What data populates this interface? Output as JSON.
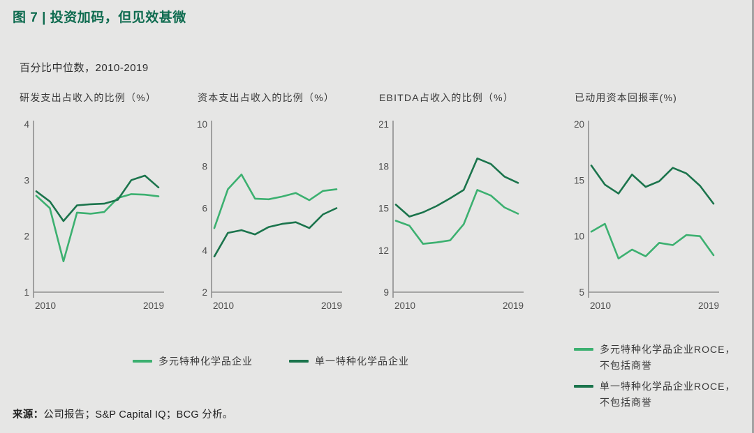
{
  "title": "图 7 | 投资加码，但见效甚微",
  "subtitle": "百分比中位数，2010-2019",
  "colors": {
    "diversified": "#3cb070",
    "focused": "#1b744c",
    "axis": "#8f8f8f",
    "title_green": "#0e6b4f",
    "background": "#e6e6e5"
  },
  "legend_main": {
    "items": [
      {
        "label": "多元特种化学品企业",
        "color_key": "diversified"
      },
      {
        "label": "单一特种化学品企业",
        "color_key": "focused"
      }
    ]
  },
  "legend_roce": {
    "items": [
      {
        "line1": "多元特种化学品企业ROCE，",
        "line2": "不包括商誉",
        "color_key": "diversified"
      },
      {
        "line1": "单一特种化学品企业ROCE，",
        "line2": "不包括商誉",
        "color_key": "focused"
      }
    ]
  },
  "source": {
    "label": "来源：",
    "text": "公司报告；S&P Capital IQ；BCG 分析。"
  },
  "chart_data": [
    {
      "type": "line",
      "title": "研发支出占收入的比例（%）",
      "x": [
        2010,
        2011,
        2012,
        2013,
        2014,
        2015,
        2016,
        2017,
        2018,
        2019
      ],
      "x_labels": [
        "2010",
        "2019"
      ],
      "ylim": [
        1,
        4
      ],
      "yticks": [
        1,
        2,
        3,
        4
      ],
      "grid": false,
      "series": [
        {
          "name": "多元特种化学品企业",
          "color_key": "diversified",
          "values": [
            2.72,
            2.5,
            1.55,
            2.42,
            2.4,
            2.43,
            2.68,
            2.75,
            2.74,
            2.71
          ]
        },
        {
          "name": "单一特种化学品企业",
          "color_key": "focused",
          "values": [
            2.8,
            2.62,
            2.27,
            2.55,
            2.57,
            2.58,
            2.65,
            3.0,
            3.08,
            2.87
          ]
        }
      ]
    },
    {
      "type": "line",
      "title": "资本支出占收入的比例（%）",
      "x": [
        2010,
        2011,
        2012,
        2013,
        2014,
        2015,
        2016,
        2017,
        2018,
        2019
      ],
      "x_labels": [
        "2010",
        "2019"
      ],
      "ylim": [
        2,
        10
      ],
      "yticks": [
        2,
        4,
        6,
        8,
        10
      ],
      "grid": false,
      "series": [
        {
          "name": "多元特种化学品企业",
          "color_key": "diversified",
          "values": [
            5.05,
            6.9,
            7.6,
            6.45,
            6.42,
            6.55,
            6.72,
            6.38,
            6.82,
            6.9
          ]
        },
        {
          "name": "单一特种化学品企业",
          "color_key": "focused",
          "values": [
            3.7,
            4.82,
            4.95,
            4.75,
            5.1,
            5.25,
            5.33,
            5.05,
            5.7,
            6.0
          ]
        }
      ]
    },
    {
      "type": "line",
      "title": "EBITDA占收入的比例（%）",
      "x": [
        2010,
        2011,
        2012,
        2013,
        2014,
        2015,
        2016,
        2017,
        2018,
        2019
      ],
      "x_labels": [
        "2010",
        "2019"
      ],
      "ylim": [
        9,
        21
      ],
      "yticks": [
        9,
        12,
        15,
        18,
        21
      ],
      "grid": false,
      "series": [
        {
          "name": "多元特种化学品企业",
          "color_key": "diversified",
          "values": [
            14.1,
            13.75,
            12.45,
            12.55,
            12.7,
            13.85,
            16.3,
            15.9,
            15.05,
            14.6
          ]
        },
        {
          "name": "单一特种化学品企业",
          "color_key": "focused",
          "values": [
            15.25,
            14.4,
            14.7,
            15.15,
            15.7,
            16.3,
            18.55,
            18.15,
            17.25,
            16.8
          ]
        }
      ]
    },
    {
      "type": "line",
      "title": "已动用资本回报率(%)",
      "x": [
        2010,
        2011,
        2012,
        2013,
        2014,
        2015,
        2016,
        2017,
        2018,
        2019
      ],
      "x_labels": [
        "2010",
        "2019"
      ],
      "ylim": [
        5,
        20
      ],
      "yticks": [
        5,
        10,
        15,
        20
      ],
      "grid": false,
      "series": [
        {
          "name": "多元特种化学品企业ROCE，不包括商誉",
          "color_key": "diversified",
          "values": [
            10.4,
            11.1,
            8.0,
            8.8,
            8.2,
            9.4,
            9.2,
            10.1,
            10.0,
            8.3
          ]
        },
        {
          "name": "单一特种化学品企业ROCE，不包括商誉",
          "color_key": "focused",
          "values": [
            16.3,
            14.6,
            13.8,
            15.5,
            14.4,
            14.9,
            16.1,
            15.6,
            14.5,
            12.9
          ]
        }
      ]
    }
  ]
}
